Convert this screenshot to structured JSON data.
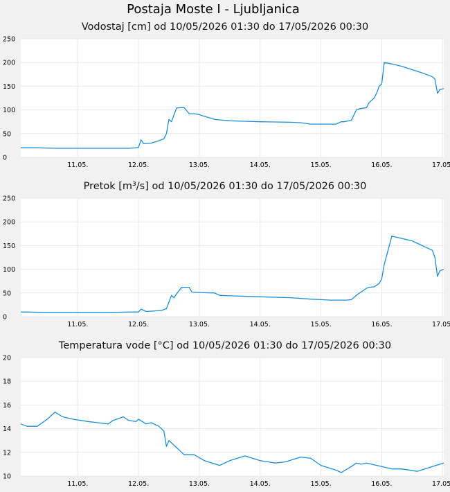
{
  "page_title": "Postaja Moste I - Ljubljanica",
  "colors": {
    "line": "#1a8cd8",
    "plot_background": "#ffffff",
    "page_background": "#f1f1f1",
    "grid": "#e8e8e8"
  },
  "chart_data": [
    {
      "type": "line",
      "title": "Vodostaj [cm] od 10/05/2026 01:30 do 17/05/2026 00:30",
      "x_tick_labels": [
        "11.05.",
        "12.05.",
        "13.05.",
        "14.05.",
        "15.05.",
        "16.05.",
        "17.05."
      ],
      "xlim": [
        "10/05/2026 01:30",
        "17/05/2026 00:30"
      ],
      "ylim": [
        0,
        250
      ],
      "y_ticks": [
        0,
        50,
        100,
        150,
        200,
        250
      ],
      "grid": true,
      "series": [
        {
          "x": [
            "10/05/2026 01:30",
            "10/05/2026 08:00",
            "10/05/2026 16:00",
            "11/05/2026 00:00",
            "11/05/2026 12:00",
            "11/05/2026 20:00",
            "11/05/2026 23:00",
            "12/05/2026 00:00",
            "12/05/2026 01:00",
            "12/05/2026 02:00",
            "12/05/2026 05:00",
            "12/05/2026 08:00",
            "12/05/2026 10:00",
            "12/05/2026 11:00",
            "12/05/2026 12:00",
            "12/05/2026 13:00",
            "12/05/2026 14:00",
            "12/05/2026 15:00",
            "12/05/2026 17:00",
            "12/05/2026 18:00",
            "12/05/2026 20:00",
            "12/05/2026 22:00",
            "13/05/2026 00:00",
            "13/05/2026 01:00",
            "13/05/2026 06:00",
            "13/05/2026 08:00",
            "13/05/2026 10:00",
            "13/05/2026 12:00",
            "13/05/2026 18:00",
            "14/05/2026 00:00",
            "14/05/2026 12:00",
            "14/05/2026 16:00",
            "14/05/2026 20:00",
            "15/05/2026 00:00",
            "15/05/2026 02:00",
            "15/05/2026 04:00",
            "15/05/2026 06:00",
            "15/05/2026 08:00",
            "15/05/2026 09:00",
            "15/05/2026 12:00",
            "15/05/2026 14:00",
            "15/05/2026 15:00",
            "15/05/2026 18:00",
            "15/05/2026 19:00",
            "15/05/2026 21:00",
            "15/05/2026 22:00",
            "15/05/2026 23:00",
            "16/05/2026 00:00",
            "16/05/2026 01:00",
            "16/05/2026 04:00",
            "16/05/2026 08:00",
            "16/05/2026 12:00",
            "16/05/2026 16:00",
            "16/05/2026 20:00",
            "16/05/2026 21:00",
            "16/05/2026 22:00",
            "16/05/2026 23:00",
            "17/05/2026 00:30"
          ],
          "y": [
            20,
            20,
            19,
            19,
            19,
            19,
            20,
            21,
            37,
            29,
            30,
            35,
            39,
            50,
            80,
            75,
            90,
            104,
            105,
            105,
            92,
            92,
            90,
            88,
            80,
            79,
            78,
            77,
            76,
            75,
            74,
            73,
            70,
            70,
            70,
            70,
            70,
            75,
            75,
            78,
            100,
            102,
            105,
            115,
            125,
            135,
            150,
            155,
            200,
            197,
            192,
            185,
            178,
            170,
            165,
            135,
            143,
            145
          ]
        }
      ]
    },
    {
      "type": "line",
      "title": "Pretok [m³/s] od 10/05/2026 01:30 do 17/05/2026 00:30",
      "x_tick_labels": [
        "11.05.",
        "12.05.",
        "13.05.",
        "14.05.",
        "15.05.",
        "16.05.",
        "17.05."
      ],
      "xlim": [
        "10/05/2026 01:30",
        "17/05/2026 00:30"
      ],
      "ylim": [
        0,
        250
      ],
      "y_ticks": [
        0,
        50,
        100,
        150,
        200,
        250
      ],
      "grid": true,
      "series": [
        {
          "x": [
            "10/05/2026 01:30",
            "10/05/2026 12:00",
            "11/05/2026 00:00",
            "11/05/2026 12:00",
            "11/05/2026 23:00",
            "12/05/2026 00:00",
            "12/05/2026 01:00",
            "12/05/2026 03:00",
            "12/05/2026 09:00",
            "12/05/2026 11:00",
            "12/05/2026 13:00",
            "12/05/2026 14:00",
            "12/05/2026 15:00",
            "12/05/2026 17:00",
            "12/05/2026 20:00",
            "12/05/2026 21:00",
            "13/05/2026 00:00",
            "13/05/2026 06:00",
            "13/05/2026 08:00",
            "13/05/2026 12:00",
            "14/05/2026 00:00",
            "14/05/2026 12:00",
            "14/05/2026 20:00",
            "15/05/2026 00:00",
            "15/05/2026 04:00",
            "15/05/2026 06:00",
            "15/05/2026 10:00",
            "15/05/2026 12:00",
            "15/05/2026 14:00",
            "15/05/2026 15:00",
            "15/05/2026 18:00",
            "15/05/2026 19:00",
            "15/05/2026 21:00",
            "15/05/2026 23:00",
            "16/05/2026 00:00",
            "16/05/2026 01:00",
            "16/05/2026 04:00",
            "16/05/2026 12:00",
            "16/05/2026 20:00",
            "16/05/2026 21:00",
            "16/05/2026 22:00",
            "16/05/2026 23:00",
            "17/05/2026 00:30"
          ],
          "y": [
            10,
            9,
            9,
            9,
            10,
            10,
            16,
            11,
            13,
            17,
            45,
            40,
            48,
            62,
            62,
            52,
            51,
            50,
            45,
            44,
            42,
            40,
            37,
            36,
            35,
            35,
            35,
            36,
            45,
            49,
            60,
            62,
            63,
            70,
            80,
            110,
            170,
            160,
            140,
            125,
            85,
            97,
            100
          ]
        }
      ]
    },
    {
      "type": "line",
      "title": "Temperatura vode [°C] od 10/05/2026 01:30 do 17/05/2026 00:30",
      "x_tick_labels": [
        "11.05.",
        "12.05.",
        "13.05.",
        "14.05.",
        "15.05.",
        "16.05.",
        "17.05."
      ],
      "xlim": [
        "10/05/2026 01:30",
        "17/05/2026 00:30"
      ],
      "ylim": [
        10,
        20
      ],
      "y_ticks": [
        10,
        12,
        14,
        16,
        18,
        20
      ],
      "grid": true,
      "series": [
        {
          "x": [
            "10/05/2026 01:30",
            "10/05/2026 04:00",
            "10/05/2026 08:00",
            "10/05/2026 12:00",
            "10/05/2026 15:00",
            "10/05/2026 18:00",
            "10/05/2026 22:00",
            "11/05/2026 04:00",
            "11/05/2026 08:00",
            "11/05/2026 12:00",
            "11/05/2026 14:00",
            "11/05/2026 18:00",
            "11/05/2026 20:00",
            "11/05/2026 23:00",
            "12/05/2026 00:00",
            "12/05/2026 03:00",
            "12/05/2026 05:00",
            "12/05/2026 08:00",
            "12/05/2026 10:00",
            "12/05/2026 11:00",
            "12/05/2026 12:00",
            "12/05/2026 14:00",
            "12/05/2026 18:00",
            "12/05/2026 22:00",
            "13/05/2026 02:00",
            "13/05/2026 08:00",
            "13/05/2026 12:00",
            "13/05/2026 18:00",
            "14/05/2026 00:00",
            "14/05/2026 06:00",
            "14/05/2026 10:00",
            "14/05/2026 16:00",
            "14/05/2026 20:00",
            "15/05/2026 00:00",
            "15/05/2026 06:00",
            "15/05/2026 08:00",
            "15/05/2026 12:00",
            "15/05/2026 14:00",
            "15/05/2026 16:00",
            "15/05/2026 18:00",
            "16/05/2026 00:00",
            "16/05/2026 04:00",
            "16/05/2026 08:00",
            "16/05/2026 14:00",
            "16/05/2026 20:00",
            "16/05/2026 23:00",
            "17/05/2026 00:30"
          ],
          "y": [
            14.4,
            14.2,
            14.2,
            14.8,
            15.4,
            15.0,
            14.8,
            14.6,
            14.5,
            14.4,
            14.7,
            15.0,
            14.7,
            14.6,
            14.8,
            14.4,
            14.5,
            14.2,
            13.8,
            12.5,
            13.0,
            12.6,
            11.8,
            11.8,
            11.3,
            10.9,
            11.3,
            11.7,
            11.3,
            11.1,
            11.2,
            11.6,
            11.5,
            10.9,
            10.5,
            10.3,
            10.8,
            11.1,
            11.0,
            11.1,
            10.8,
            10.6,
            10.6,
            10.4,
            10.8,
            11.0,
            11.1
          ]
        }
      ]
    }
  ]
}
